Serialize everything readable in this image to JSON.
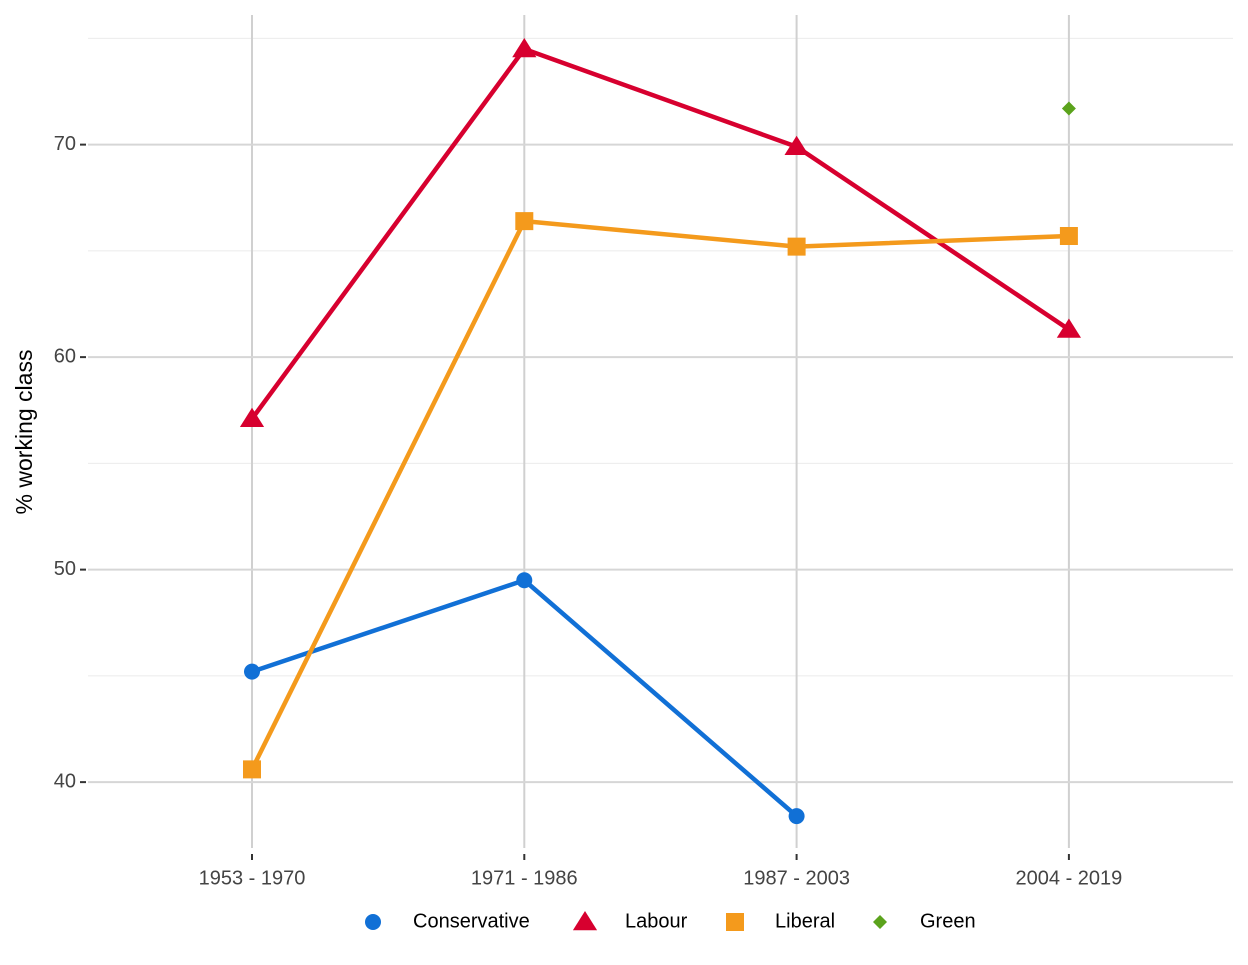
{
  "chart_data": {
    "type": "line",
    "y_label": "% working class",
    "categories": [
      "1953 - 1970",
      "1971 - 1986",
      "1987 - 2003",
      "2004 - 2019"
    ],
    "series": [
      {
        "name": "Conservative",
        "color": "#1170d6",
        "marker": "circle",
        "values": [
          45.2,
          49.5,
          38.4,
          null
        ]
      },
      {
        "name": "Labour",
        "color": "#d7002f",
        "marker": "triangle",
        "values": [
          57.1,
          74.5,
          69.9,
          61.3
        ]
      },
      {
        "name": "Liberal",
        "color": "#f49a1c",
        "marker": "square",
        "values": [
          40.6,
          66.4,
          65.2,
          65.7
        ]
      },
      {
        "name": "Green",
        "color": "#5ba31c",
        "marker": "diamond",
        "values": [
          null,
          null,
          null,
          71.7
        ]
      }
    ],
    "ylim": [
      36.9,
      76.1
    ],
    "yticks": [
      40,
      50,
      60,
      70
    ],
    "yminor": [
      45,
      55,
      65,
      75
    ],
    "grid": true,
    "legend": "bottom"
  }
}
